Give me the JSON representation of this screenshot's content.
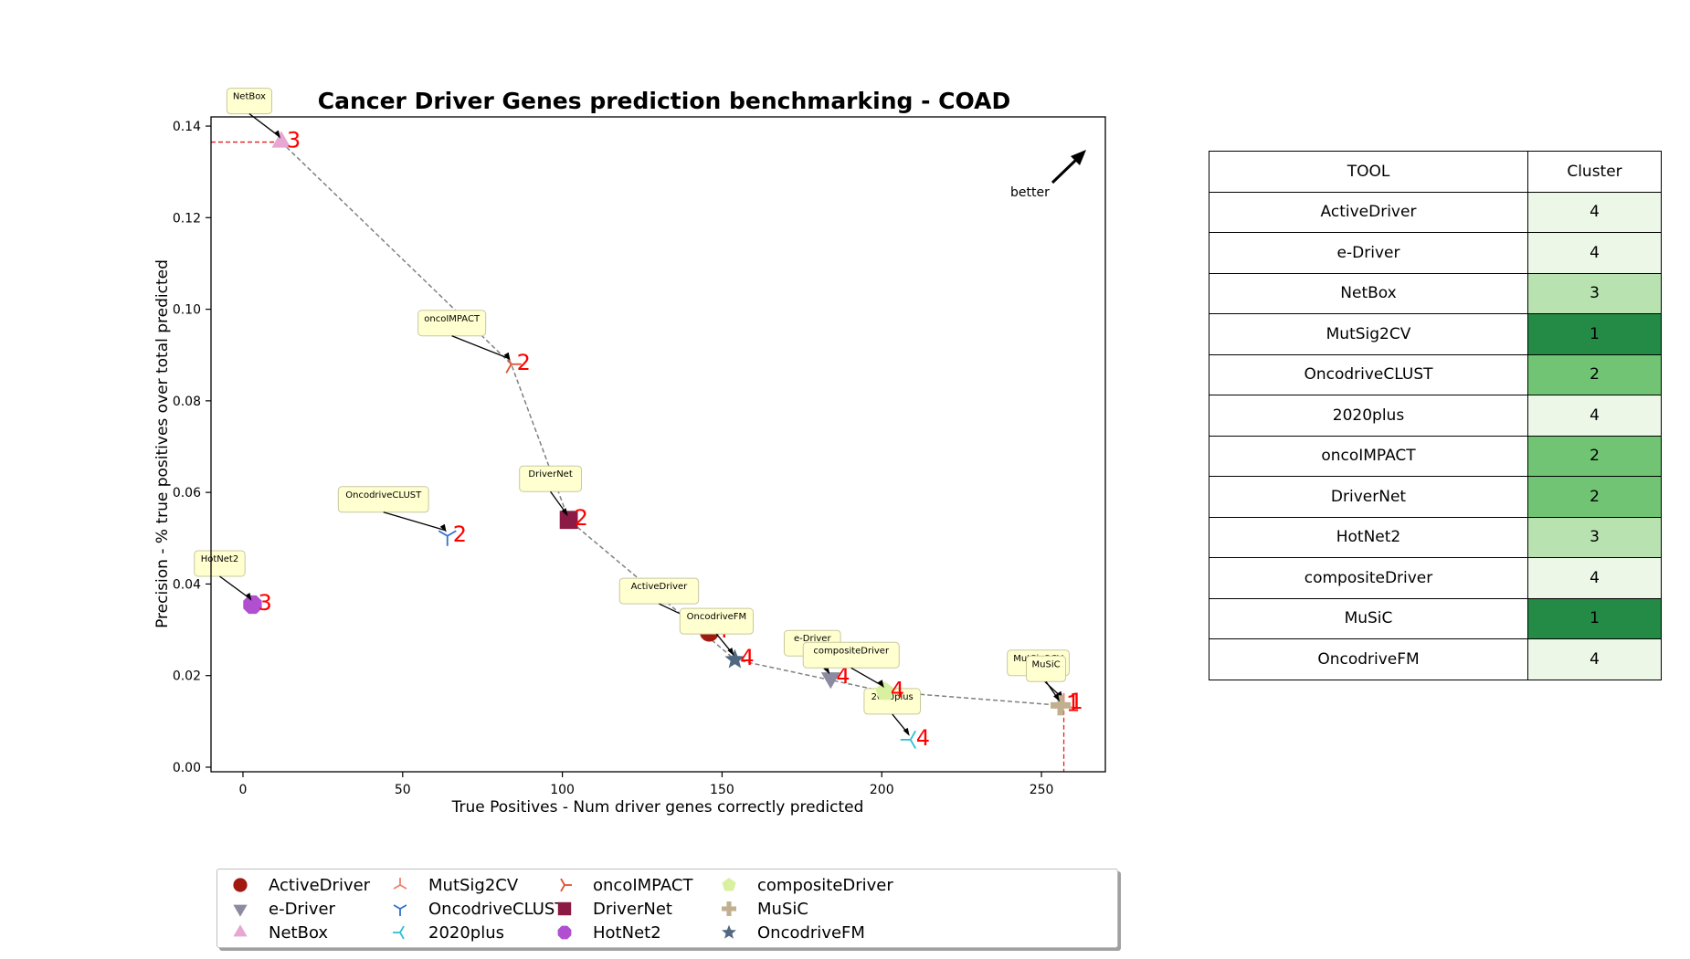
{
  "chart_data": {
    "type": "scatter",
    "title": "Cancer Driver Genes prediction benchmarking - COAD",
    "xlabel": "True Positives - Num driver genes correctly predicted",
    "ylabel": "Precision - % true positives over total predicted",
    "xlim": [
      -10,
      270
    ],
    "ylim": [
      -0.001,
      0.142
    ],
    "xticks": [
      0,
      50,
      100,
      150,
      200,
      250
    ],
    "yticks": [
      0.0,
      0.02,
      0.04,
      0.06,
      0.08,
      0.1,
      0.12,
      0.14
    ],
    "xtick_labels": [
      "0",
      "50",
      "100",
      "150",
      "200",
      "250"
    ],
    "ytick_labels": [
      "0.00",
      "0.02",
      "0.04",
      "0.06",
      "0.08",
      "0.10",
      "0.12",
      "0.14"
    ],
    "annotation": "better",
    "grid": false,
    "legend_placement": "bottom",
    "series": [
      {
        "name": "ActiveDriver",
        "x": 146,
        "y": 0.0295,
        "cluster": "4",
        "color": "#a01a10",
        "marker": "circle"
      },
      {
        "name": "e-Driver",
        "x": 184,
        "y": 0.0195,
        "cluster": "4",
        "color": "#8a8aa0",
        "marker": "triangle-down"
      },
      {
        "name": "NetBox",
        "x": 12,
        "y": 0.1365,
        "cluster": "3",
        "color": "#e8a6d2",
        "marker": "triangle-up"
      },
      {
        "name": "MutSig2CV",
        "x": 257,
        "y": 0.014,
        "cluster": "1",
        "color": "#f08070",
        "marker": "tri-down"
      },
      {
        "name": "OncodriveCLUST",
        "x": 64,
        "y": 0.0505,
        "cluster": "2",
        "color": "#3070d0",
        "marker": "tri-up"
      },
      {
        "name": "2020plus",
        "x": 209,
        "y": 0.006,
        "cluster": "4",
        "color": "#30c0d0",
        "marker": "tri-left"
      },
      {
        "name": "oncoIMPACT",
        "x": 84,
        "y": 0.088,
        "cluster": "2",
        "color": "#e05030",
        "marker": "tri-right"
      },
      {
        "name": "DriverNet",
        "x": 102,
        "y": 0.054,
        "cluster": "2",
        "color": "#8b1a44",
        "marker": "square"
      },
      {
        "name": "HotNet2",
        "x": 3,
        "y": 0.0355,
        "cluster": "3",
        "color": "#b050d0",
        "marker": "octagon"
      },
      {
        "name": "compositeDriver",
        "x": 201,
        "y": 0.0165,
        "cluster": "4",
        "color": "#d8f0a0",
        "marker": "pentagon"
      },
      {
        "name": "MuSiC",
        "x": 256,
        "y": 0.0135,
        "cluster": "1",
        "color": "#c0b090",
        "marker": "plus"
      },
      {
        "name": "OncodriveFM",
        "x": 154,
        "y": 0.0235,
        "cluster": "4",
        "color": "#506880",
        "marker": "star"
      }
    ],
    "pareto_front": [
      "NetBox",
      "oncoIMPACT",
      "DriverNet",
      "OncodriveFM",
      "compositeDriver",
      "MuSiC"
    ],
    "reference_lines": {
      "y": 0.1365,
      "x": 257
    }
  },
  "table": {
    "headers": [
      "TOOL",
      "Cluster"
    ],
    "rows": [
      {
        "tool": "ActiveDriver",
        "cluster": "4",
        "color": "#ecf7e7"
      },
      {
        "tool": "e-Driver",
        "cluster": "4",
        "color": "#ecf7e7"
      },
      {
        "tool": "NetBox",
        "cluster": "3",
        "color": "#b8e3b1"
      },
      {
        "tool": "MutSig2CV",
        "cluster": "1",
        "color": "#238b45"
      },
      {
        "tool": "OncodriveCLUST",
        "cluster": "2",
        "color": "#71c474"
      },
      {
        "tool": "2020plus",
        "cluster": "4",
        "color": "#ecf7e7"
      },
      {
        "tool": "oncoIMPACT",
        "cluster": "2",
        "color": "#71c474"
      },
      {
        "tool": "DriverNet",
        "cluster": "2",
        "color": "#71c474"
      },
      {
        "tool": "HotNet2",
        "cluster": "3",
        "color": "#b8e3b1"
      },
      {
        "tool": "compositeDriver",
        "cluster": "4",
        "color": "#ecf7e7"
      },
      {
        "tool": "MuSiC",
        "cluster": "1",
        "color": "#238b45"
      },
      {
        "tool": "OncodriveFM",
        "cluster": "4",
        "color": "#ecf7e7"
      }
    ]
  }
}
